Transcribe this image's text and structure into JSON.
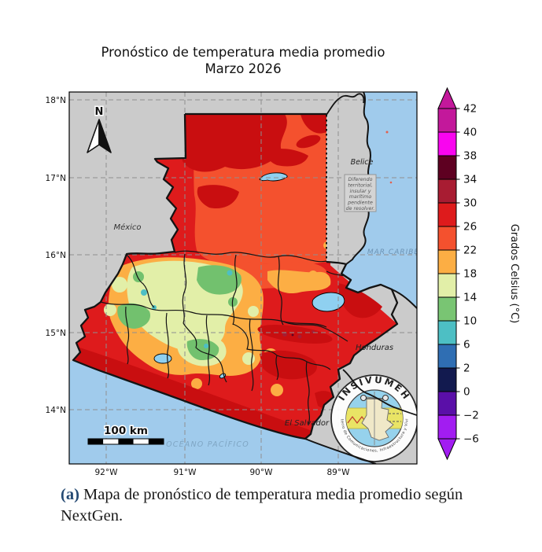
{
  "figure": {
    "title_line1": "Pronóstico de temperatura media promedio",
    "title_line2": "Marzo 2026"
  },
  "axes": {
    "lat_labels": [
      "18°N",
      "17°N",
      "16°N",
      "15°N",
      "14°N"
    ],
    "lon_labels": [
      "92°W",
      "91°W",
      "90°W",
      "89°W"
    ]
  },
  "map": {
    "compass_label": "N",
    "scale_label": "100 km",
    "labels": {
      "mexico": "México",
      "belice": "Belice",
      "honduras": "Honduras",
      "el_salvador": "El Salvador",
      "mar_caribe": "MAR CARIBE",
      "oceano_pacifico": "OCÉANO PACÍFICO"
    },
    "note_lines": [
      "Diferendo",
      "territorial,",
      "insular y",
      "marítimo",
      "pendiente",
      "de resolver."
    ]
  },
  "colorbar": {
    "label": "Grados Celsius (°C)",
    "tick_labels_top_to_bottom": [
      "42",
      "40",
      "38",
      "34",
      "30",
      "26",
      "22",
      "18",
      "14",
      "10",
      "6",
      "2",
      "0",
      "−2",
      "−6"
    ],
    "bands_bottom_to_top": [
      {
        "from": -6,
        "to": -2,
        "color": "#A21DF1"
      },
      {
        "from": -2,
        "to": 0,
        "color": "#5A0FA8"
      },
      {
        "from": 0,
        "to": 2,
        "color": "#121A4F"
      },
      {
        "from": 2,
        "to": 6,
        "color": "#2F6EB3"
      },
      {
        "from": 6,
        "to": 10,
        "color": "#4DBFC4"
      },
      {
        "from": 10,
        "to": 14,
        "color": "#79C573"
      },
      {
        "from": 14,
        "to": 18,
        "color": "#E2EFA8"
      },
      {
        "from": 18,
        "to": 22,
        "color": "#FCAE44"
      },
      {
        "from": 22,
        "to": 26,
        "color": "#F4512E"
      },
      {
        "from": 26,
        "to": 30,
        "color": "#DE1B1C"
      },
      {
        "from": 30,
        "to": 34,
        "color": "#A81C32"
      },
      {
        "from": 34,
        "to": 38,
        "color": "#5E0021"
      },
      {
        "from": 38,
        "to": 40,
        "color": "#F905EF"
      },
      {
        "from": 40,
        "to": 42,
        "color": "#C3189B"
      }
    ],
    "extend_above_color": "#C3189B",
    "extend_below_color": "#A21DF1"
  },
  "logo": {
    "arc_top": "INSIVUMEH",
    "arc_bottom": "Ministerio de Comunicaciones, Infraestructura y Vivienda"
  },
  "caption": {
    "tag": "(a)",
    "text": " Mapa de pronóstico de temperatura media promedio según NextGen."
  },
  "palette": {
    "land_gray": "#CBCBCB",
    "sea_blue": "#A0CBEC",
    "lake_blue": "#8FD0F0",
    "border_black": "#141414"
  }
}
